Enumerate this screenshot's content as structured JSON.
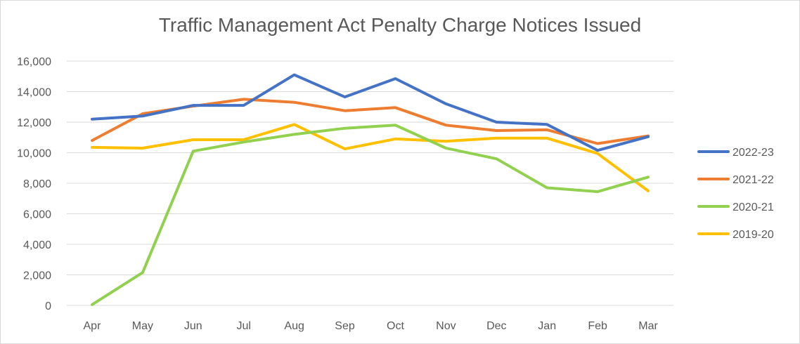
{
  "chart_data": {
    "type": "line",
    "title": "Traffic Management Act Penalty Charge Notices Issued",
    "xlabel": "",
    "ylabel": "",
    "categories": [
      "Apr",
      "May",
      "Jun",
      "Jul",
      "Aug",
      "Sep",
      "Oct",
      "Nov",
      "Dec",
      "Jan",
      "Feb",
      "Mar"
    ],
    "ylim": [
      0,
      16000
    ],
    "yticks": [
      0,
      2000,
      4000,
      6000,
      8000,
      10000,
      12000,
      14000,
      16000
    ],
    "ytick_labels": [
      "0",
      "2,000",
      "4,000",
      "6,000",
      "8,000",
      "10,000",
      "12,000",
      "14,000",
      "16,000"
    ],
    "grid": true,
    "legend_position": "right",
    "series": [
      {
        "name": "2022-23",
        "color": "#4472C4",
        "values": [
          12200,
          12400,
          13100,
          13100,
          15100,
          13650,
          14850,
          13200,
          12000,
          11850,
          10150,
          11050
        ]
      },
      {
        "name": "2021-22",
        "color": "#ED7D31",
        "values": [
          10800,
          12550,
          13050,
          13500,
          13300,
          12750,
          12950,
          11800,
          11450,
          11500,
          10600,
          11100
        ]
      },
      {
        "name": "2020-21",
        "color": "#92D050",
        "values": [
          50,
          2150,
          10100,
          10700,
          11200,
          11600,
          11800,
          10300,
          9600,
          7700,
          7450,
          8400
        ]
      },
      {
        "name": "2019-20",
        "color": "#FFC000",
        "values": [
          10350,
          10300,
          10850,
          10850,
          11850,
          10250,
          10900,
          10750,
          10950,
          10950,
          9950,
          7500
        ]
      }
    ]
  }
}
